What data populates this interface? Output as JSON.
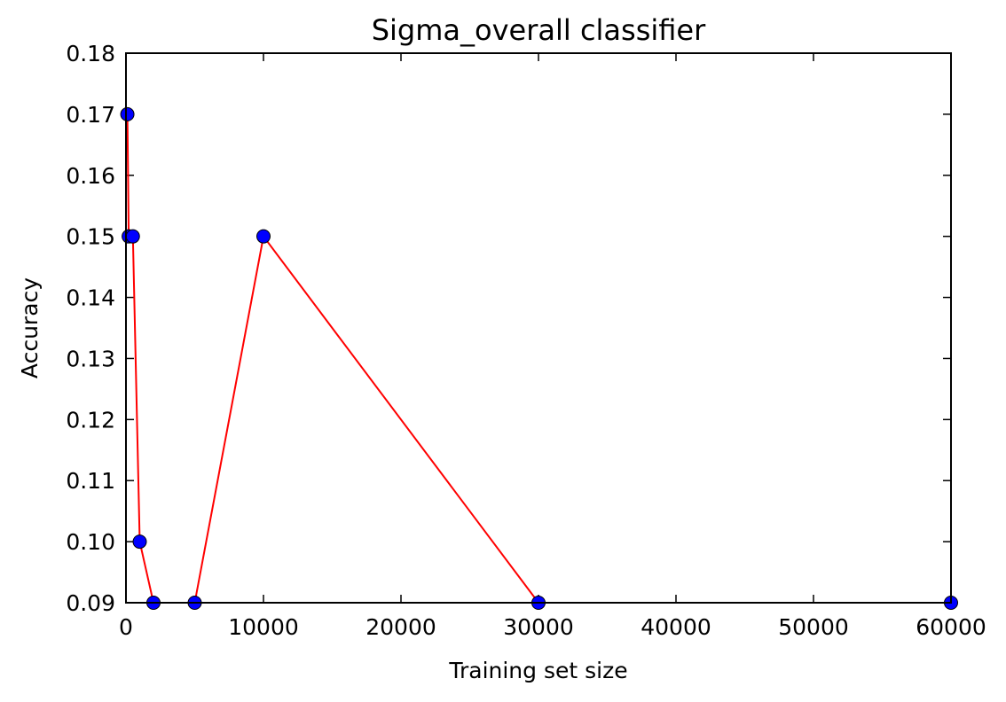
{
  "chart_data": {
    "type": "line",
    "title": "Sigma_overall classifier",
    "xlabel": "Training set size",
    "ylabel": "Accuracy",
    "xlim": [
      0,
      60000
    ],
    "ylim": [
      0.09,
      0.18
    ],
    "x_ticks": [
      "0",
      "10000",
      "20000",
      "30000",
      "40000",
      "50000",
      "60000"
    ],
    "y_ticks": [
      "0.09",
      "0.10",
      "0.11",
      "0.12",
      "0.13",
      "0.14",
      "0.15",
      "0.16",
      "0.17",
      "0.18"
    ],
    "grid": false,
    "series": [
      {
        "x": [
          100,
          200,
          500,
          1000,
          2000,
          5000,
          10000,
          30000,
          60000
        ],
        "y": [
          0.17,
          0.15,
          0.15,
          0.1,
          0.09,
          0.09,
          0.15,
          0.09,
          0.09
        ],
        "line_color": "#ff0000",
        "marker_color": "#0000ff"
      }
    ]
  }
}
